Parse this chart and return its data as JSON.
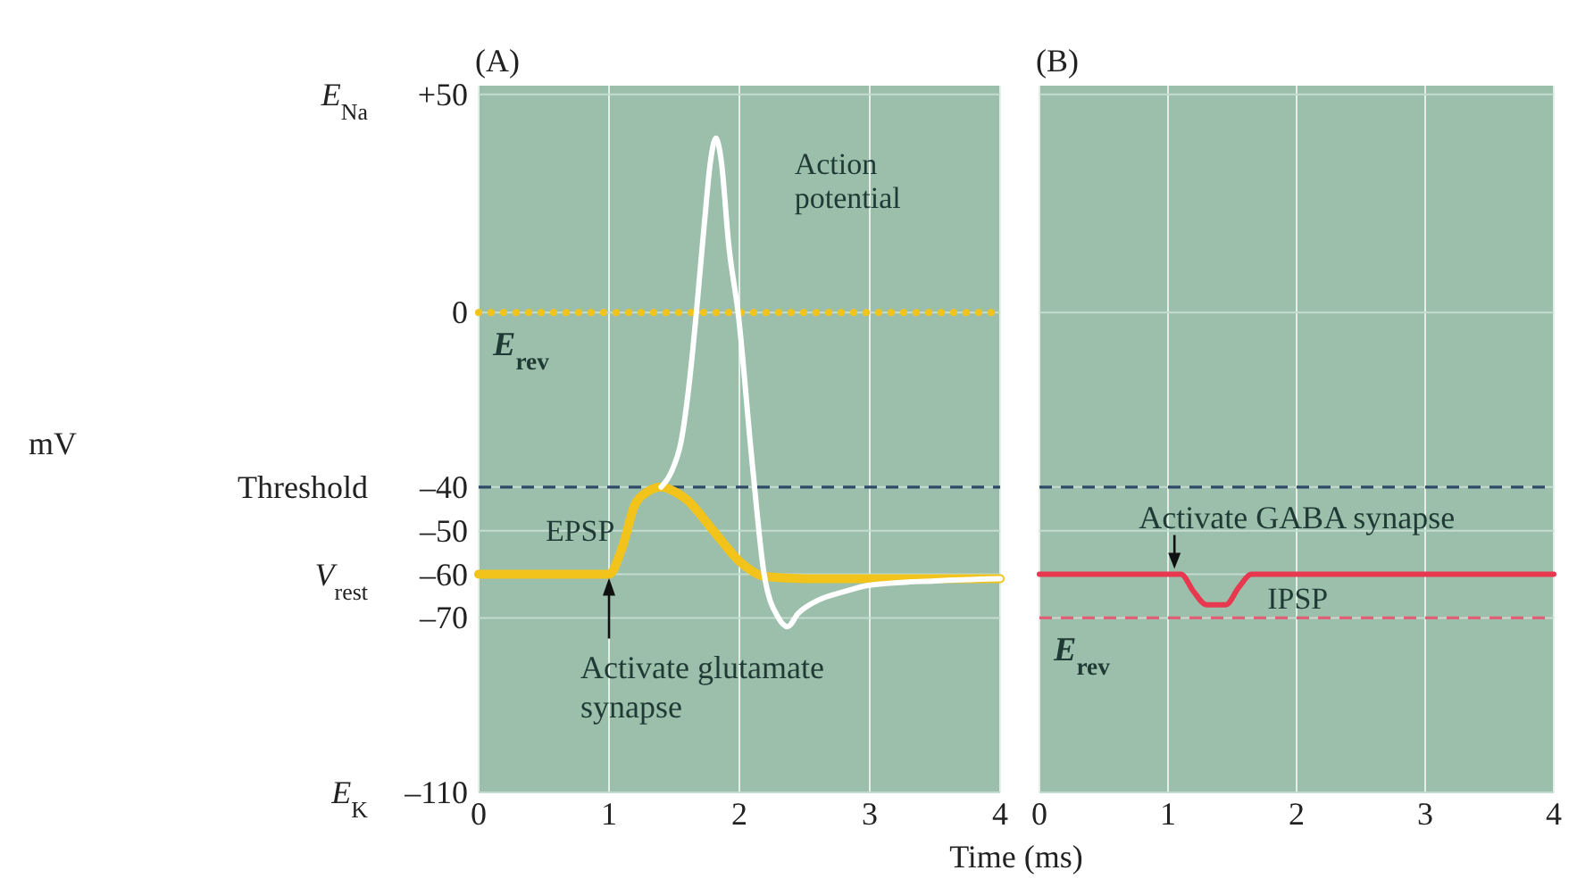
{
  "chart_data": [
    {
      "type": "line",
      "title": "(A)",
      "ylabel": "mV",
      "xlabel": "Time (ms)",
      "xlim": [
        0,
        4
      ],
      "xticks": [
        0,
        1,
        2,
        3,
        4
      ],
      "ylim": [
        -110,
        52
      ],
      "yticks": [
        {
          "value": 50,
          "label": "+50"
        },
        0,
        {
          "value": -40,
          "label": "–40"
        },
        {
          "value": -50,
          "label": "–50"
        },
        {
          "value": -60,
          "label": "–60"
        },
        {
          "value": -70,
          "label": "–70"
        },
        {
          "value": -110,
          "label": "–110"
        }
      ],
      "grid": true,
      "series": [
        {
          "name": "EPSP",
          "color": "#f2c31a",
          "x": [
            0,
            1,
            1.1,
            1.2,
            1.3,
            1.4,
            1.5,
            1.6,
            1.8,
            2.0,
            2.2,
            2.5,
            3,
            4
          ],
          "values": [
            -60,
            -60,
            -54,
            -44,
            -41,
            -40,
            -41,
            -43,
            -50,
            -57,
            -60.5,
            -61,
            -61,
            -61
          ]
        },
        {
          "name": "Action potential",
          "color": "#ffffff",
          "x": [
            1.4,
            1.5,
            1.55,
            1.62,
            1.67,
            1.73,
            1.78,
            1.82,
            1.86,
            1.92,
            1.99,
            2.1,
            2.19,
            2.3,
            2.37,
            2.45,
            2.6,
            2.8,
            3,
            3.5,
            4
          ],
          "values": [
            -40,
            -35,
            -30,
            -15,
            0,
            20,
            35,
            40,
            35,
            15,
            0,
            -35,
            -60,
            -70,
            -72,
            -69,
            -66,
            -64,
            -62.5,
            -61.5,
            -61
          ]
        }
      ],
      "ref_lines": [
        {
          "axis": "y",
          "value": 0,
          "label": "E$_{rev}$",
          "color": "#f2c31a",
          "line_style": "dotted"
        },
        {
          "axis": "y",
          "value": -40,
          "color": "#2e4a68",
          "line_style": "dashed"
        }
      ],
      "annotations": [
        "E$_{Na}$",
        "Threshold",
        "V$_{rest}$",
        "E$_{K}$",
        {
          "text": "Activate glutamate synapse",
          "x": 1,
          "y": -60
        }
      ]
    },
    {
      "type": "line",
      "title": "(B)",
      "xlim": [
        0,
        4
      ],
      "xticks": [
        0,
        1,
        2,
        3,
        4
      ],
      "ylim": [
        -110,
        52
      ],
      "yticks": [
        50,
        0,
        -40,
        -50,
        -60,
        -70,
        -110
      ],
      "grid": true,
      "tick_labels": "x",
      "series": [
        {
          "name": "IPSP",
          "color": "#e8384f",
          "x": [
            0,
            1.1,
            1.2,
            1.3,
            1.45,
            1.55,
            1.65,
            2,
            3,
            4
          ],
          "values": [
            -60,
            -60,
            -64,
            -67,
            -67,
            -63,
            -60,
            -60,
            -60,
            -60
          ]
        }
      ],
      "ref_lines": [
        {
          "axis": "y",
          "value": -40,
          "color": "#2e4a68",
          "line_style": "dashed"
        },
        {
          "axis": "y",
          "value": -70,
          "label": "E$_{rev}$",
          "color": "#e0607a",
          "line_style": "dashed"
        }
      ],
      "annotations": [
        {
          "text": "Activate GABA synapse",
          "x": 1.05,
          "y": -60
        }
      ]
    }
  ]
}
